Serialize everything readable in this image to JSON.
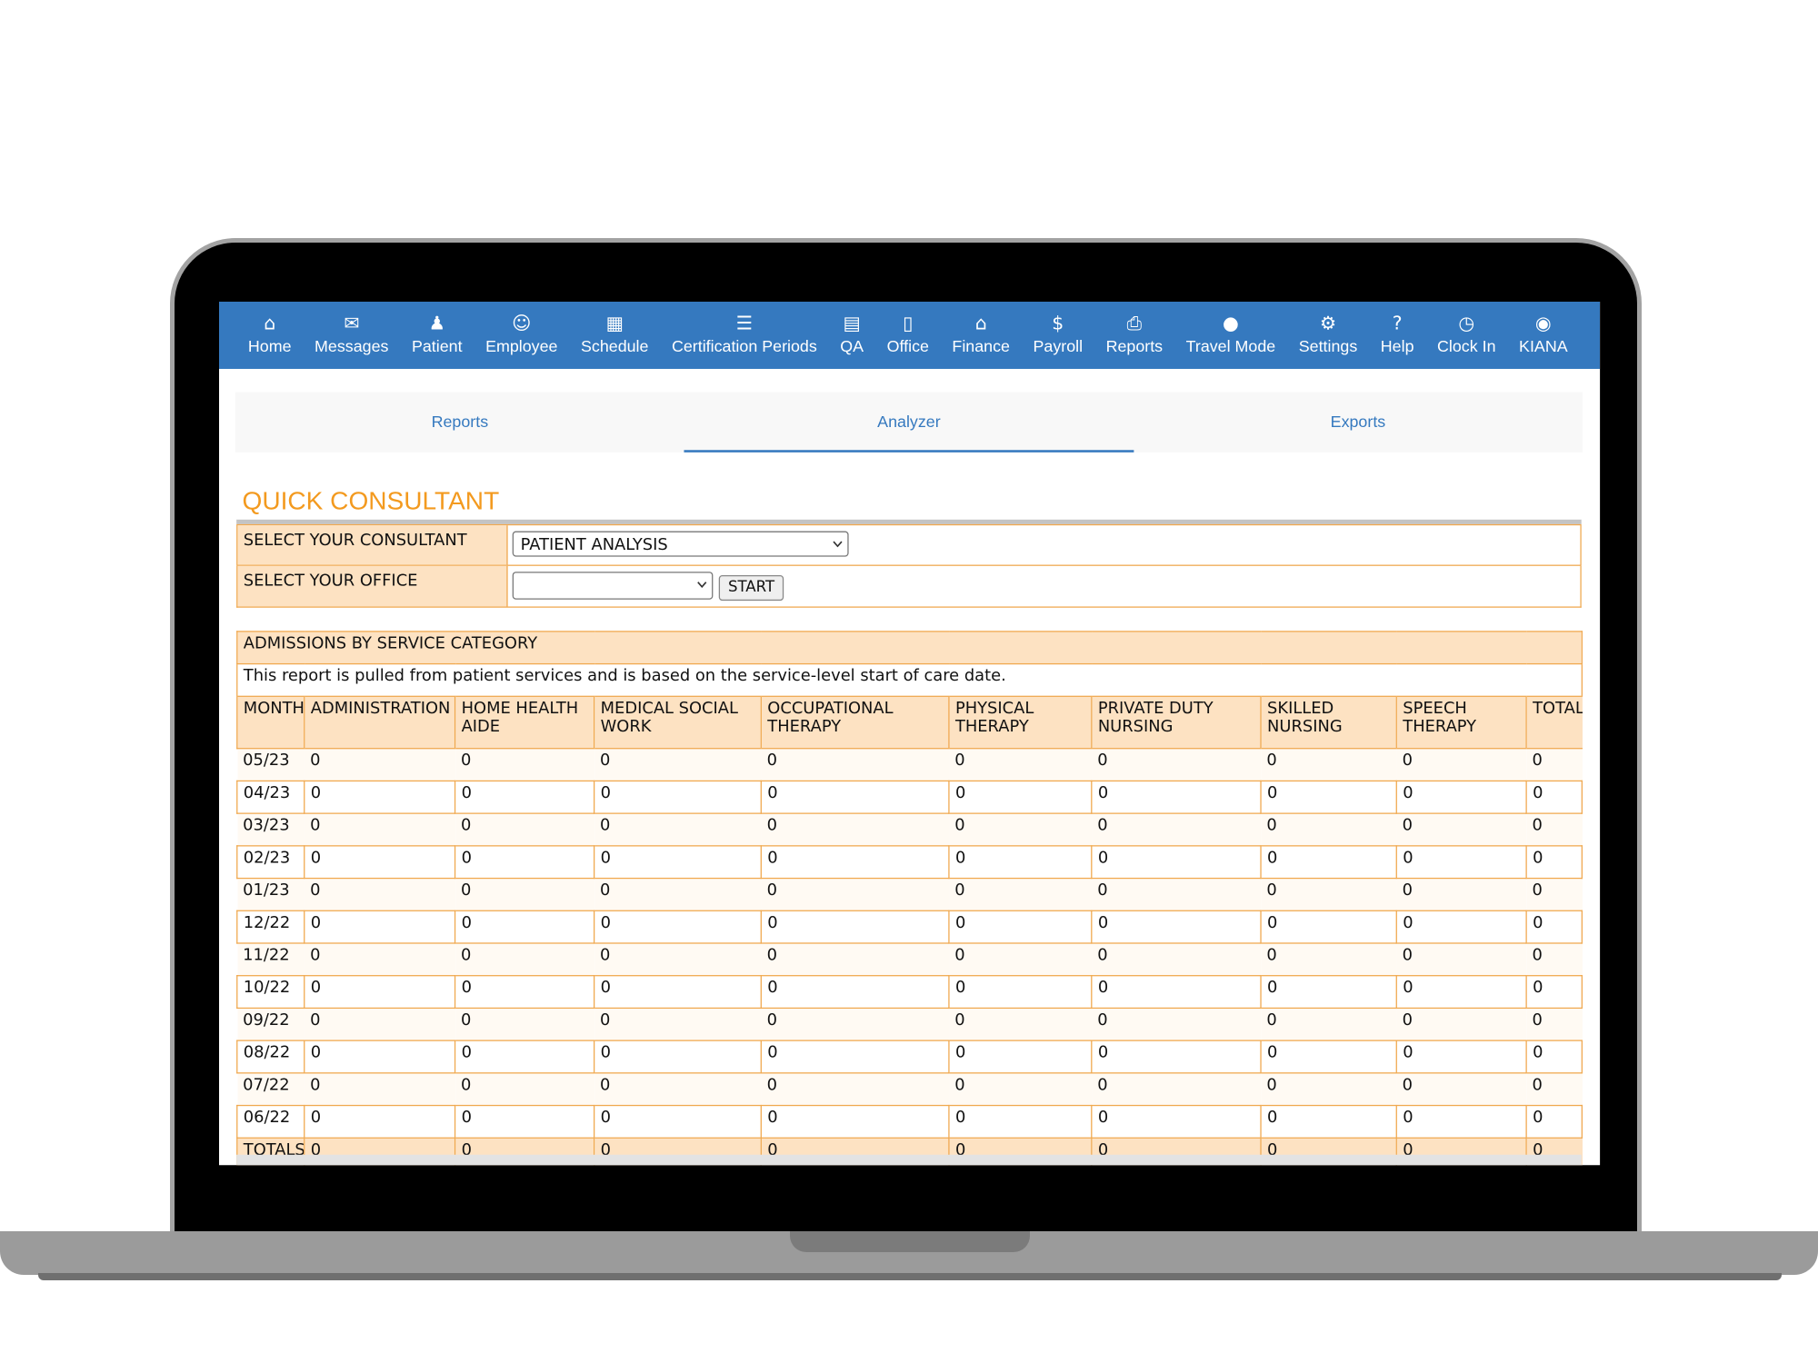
{
  "nav": [
    "Home",
    "Messages",
    "Patient",
    "Employee",
    "Schedule",
    "Certification Periods",
    "QA",
    "Office",
    "Finance",
    "Payroll",
    "Reports",
    "Travel Mode",
    "Settings",
    "Help",
    "Clock In",
    "KIANA"
  ],
  "tabs": [
    "Reports",
    "Analyzer",
    "Exports"
  ],
  "title": "QUICK CONSULTANT",
  "form": {
    "consultant_label": "SELECT YOUR CONSULTANT",
    "consultant_value": "PATIENT ANALYSIS",
    "office_label": "SELECT YOUR OFFICE",
    "start_button": "START"
  },
  "report": {
    "title": "ADMISSIONS BY SERVICE CATEGORY",
    "note": "This report is pulled from patient services and is based on the service-level start of care date.",
    "columns": [
      "MONTH",
      "ADMINISTRATION",
      "HOME HEALTH AIDE",
      "MEDICAL SOCIAL WORK",
      "OCCUPATIONAL THERAPY",
      "PHYSICAL THERAPY",
      "PRIVATE DUTY NURSING",
      "SKILLED NURSING",
      "SPEECH THERAPY",
      "TOTAL"
    ],
    "rows": [
      [
        "05/23",
        0,
        0,
        0,
        0,
        0,
        0,
        0,
        0,
        0
      ],
      [
        "04/23",
        0,
        0,
        0,
        0,
        0,
        0,
        0,
        0,
        0
      ],
      [
        "03/23",
        0,
        0,
        0,
        0,
        0,
        0,
        0,
        0,
        0
      ],
      [
        "02/23",
        0,
        0,
        0,
        0,
        0,
        0,
        0,
        0,
        0
      ],
      [
        "01/23",
        0,
        0,
        0,
        0,
        0,
        0,
        0,
        0,
        0
      ],
      [
        "12/22",
        0,
        0,
        0,
        0,
        0,
        0,
        0,
        0,
        0
      ],
      [
        "11/22",
        0,
        0,
        0,
        0,
        0,
        0,
        0,
        0,
        0
      ],
      [
        "10/22",
        0,
        0,
        0,
        0,
        0,
        0,
        0,
        0,
        0
      ],
      [
        "09/22",
        0,
        0,
        0,
        0,
        0,
        0,
        0,
        0,
        0
      ],
      [
        "08/22",
        0,
        0,
        0,
        0,
        0,
        0,
        0,
        0,
        0
      ],
      [
        "07/22",
        0,
        0,
        0,
        0,
        0,
        0,
        0,
        0,
        0
      ],
      [
        "06/22",
        0,
        0,
        0,
        0,
        0,
        0,
        0,
        0,
        0
      ]
    ],
    "totals": [
      "TOTALS",
      0,
      0,
      0,
      0,
      0,
      0,
      0,
      0,
      0
    ]
  }
}
